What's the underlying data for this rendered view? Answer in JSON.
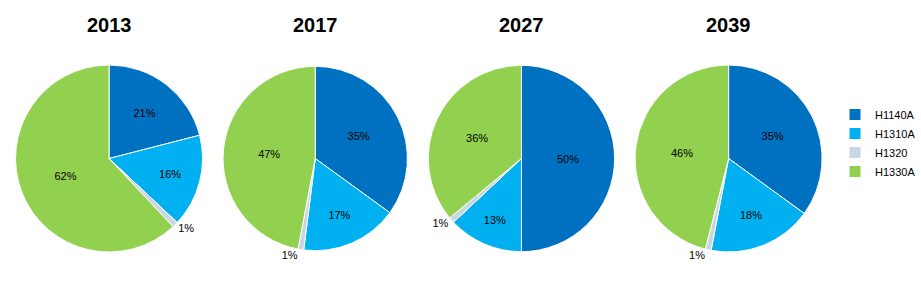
{
  "chart_data": [
    {
      "type": "pie",
      "title": "2013",
      "categories": [
        "H1140A",
        "H1310A",
        "H1320",
        "H1330A"
      ],
      "values": [
        21,
        16,
        1,
        62
      ],
      "value_labels": [
        "21%",
        "16%",
        "1%",
        "62%"
      ],
      "colors": [
        "#0070c0",
        "#00b0f0",
        "#c9d6e3",
        "#92d050"
      ],
      "data_labels": true
    },
    {
      "type": "pie",
      "title": "2017",
      "categories": [
        "H1140A",
        "H1310A",
        "H1320",
        "H1330A"
      ],
      "values": [
        35,
        17,
        1,
        47
      ],
      "value_labels": [
        "35%",
        "17%",
        "1%",
        "47%"
      ],
      "colors": [
        "#0070c0",
        "#00b0f0",
        "#c9d6e3",
        "#92d050"
      ],
      "data_labels": true
    },
    {
      "type": "pie",
      "title": "2027",
      "categories": [
        "H1140A",
        "H1310A",
        "H1320",
        "H1330A"
      ],
      "values": [
        50,
        13,
        1,
        36
      ],
      "value_labels": [
        "50%",
        "13%",
        "1%",
        "36%"
      ],
      "colors": [
        "#0070c0",
        "#00b0f0",
        "#c9d6e3",
        "#92d050"
      ],
      "data_labels": true
    },
    {
      "type": "pie",
      "title": "2039",
      "categories": [
        "H1140A",
        "H1310A",
        "H1320",
        "H1330A"
      ],
      "values": [
        35,
        18,
        1,
        46
      ],
      "value_labels": [
        "35%",
        "18%",
        "1%",
        "46%"
      ],
      "colors": [
        "#0070c0",
        "#00b0f0",
        "#c9d6e3",
        "#92d050"
      ],
      "data_labels": true,
      "legend": "right"
    }
  ]
}
